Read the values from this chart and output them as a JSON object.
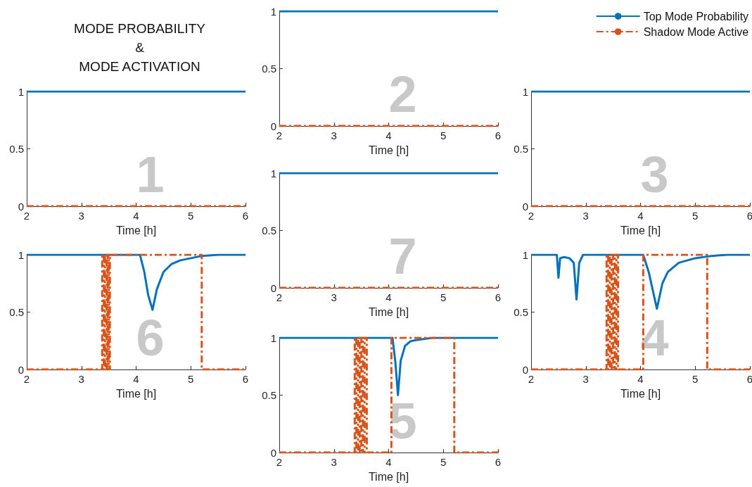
{
  "chart_data": [
    {
      "type": "line",
      "title": "MODE PROBABILITY\n&\nMODE ACTIVATION",
      "xlabel": "Time [h]",
      "annotations": [
        "1"
      ],
      "xlim": [
        2,
        6
      ],
      "xticks": [
        2,
        3,
        4,
        5,
        6
      ],
      "ylim": [
        0,
        1
      ],
      "yticks": [
        0,
        0.5,
        1
      ],
      "grid": false,
      "legend": false,
      "series": [
        {
          "color": "#0072bd",
          "line_style": "solid",
          "x": [
            2,
            6
          ],
          "values": [
            1,
            1
          ]
        },
        {
          "color": "#d95319",
          "line_style": "dashed",
          "x": [
            2,
            6
          ],
          "values": [
            0,
            0
          ]
        }
      ]
    },
    {
      "type": "line",
      "xlabel": "Time [h]",
      "annotations": [
        "2"
      ],
      "xlim": [
        2,
        6
      ],
      "xticks": [
        2,
        3,
        4,
        5,
        6
      ],
      "ylim": [
        0,
        1
      ],
      "yticks": [
        0,
        0.5,
        1
      ],
      "grid": false,
      "legend": false,
      "series": [
        {
          "color": "#0072bd",
          "line_style": "solid",
          "x": [
            2,
            6
          ],
          "values": [
            1,
            1
          ]
        },
        {
          "color": "#d95319",
          "line_style": "dashed",
          "x": [
            2,
            6
          ],
          "values": [
            0,
            0
          ]
        }
      ]
    },
    {
      "type": "line",
      "xlabel": "Time [h]",
      "annotations": [
        "3"
      ],
      "xlim": [
        2,
        6
      ],
      "xticks": [
        2,
        3,
        4,
        5,
        6
      ],
      "ylim": [
        0,
        1
      ],
      "yticks": [
        0,
        0.5,
        1
      ],
      "grid": false,
      "legend": "top right",
      "series": [
        {
          "name": "Top Mode Probability",
          "color": "#0072bd",
          "line_style": "solid",
          "x": [
            2,
            6
          ],
          "values": [
            1,
            1
          ]
        },
        {
          "name": "Shadow Mode Active",
          "color": "#d95319",
          "line_style": "dashed",
          "x": [
            2,
            6
          ],
          "values": [
            0,
            0
          ]
        }
      ]
    },
    {
      "type": "line",
      "xlabel": "Time [h]",
      "annotations": [
        "7"
      ],
      "xlim": [
        2,
        6
      ],
      "xticks": [
        2,
        3,
        4,
        5,
        6
      ],
      "ylim": [
        0,
        1
      ],
      "yticks": [
        0,
        0.5,
        1
      ],
      "grid": false,
      "legend": false,
      "series": [
        {
          "color": "#0072bd",
          "line_style": "solid",
          "x": [
            2,
            6
          ],
          "values": [
            1,
            1
          ]
        },
        {
          "color": "#d95319",
          "line_style": "dashed",
          "x": [
            2,
            6
          ],
          "values": [
            0,
            0
          ]
        }
      ]
    },
    {
      "type": "line",
      "xlabel": "Time [h]",
      "annotations": [
        "6"
      ],
      "xlim": [
        2,
        6
      ],
      "xticks": [
        2,
        3,
        4,
        5,
        6
      ],
      "ylim": [
        0,
        1
      ],
      "yticks": [
        0,
        0.5,
        1
      ],
      "grid": false,
      "legend": false,
      "series": [
        {
          "color": "#0072bd",
          "line_style": "solid",
          "x": [
            2,
            4.07,
            4.15,
            4.22,
            4.3,
            4.38,
            4.5,
            4.65,
            4.8,
            5,
            5.2,
            5.5,
            6
          ],
          "values": [
            1,
            1,
            0.85,
            0.65,
            0.52,
            0.7,
            0.85,
            0.92,
            0.95,
            0.97,
            0.99,
            1,
            1
          ]
        },
        {
          "color": "#d95319",
          "line_style": "dashed",
          "x": [
            2,
            3.38,
            3.38,
            3.41,
            3.41,
            3.43,
            3.43,
            3.46,
            3.46,
            3.48,
            3.48,
            3.5,
            3.5,
            3.52,
            3.52,
            4.05,
            4.05,
            5.2,
            5.2,
            6
          ],
          "values": [
            0,
            0,
            1,
            1,
            0,
            0,
            1,
            1,
            0,
            0,
            1,
            1,
            0,
            0,
            1,
            1,
            1,
            1,
            0,
            0
          ]
        }
      ]
    },
    {
      "type": "line",
      "xlabel": "Time [h]",
      "annotations": [
        "4"
      ],
      "xlim": [
        2,
        6
      ],
      "xticks": [
        2,
        3,
        4,
        5,
        6
      ],
      "ylim": [
        0,
        1
      ],
      "yticks": [
        0,
        0.5,
        1
      ],
      "grid": false,
      "legend": false,
      "series": [
        {
          "color": "#0072bd",
          "line_style": "solid",
          "x": [
            2,
            2.47,
            2.5,
            2.53,
            2.6,
            2.7,
            2.78,
            2.83,
            2.88,
            2.95,
            4.05,
            4.15,
            4.22,
            4.3,
            4.4,
            4.5,
            4.7,
            5,
            5.3,
            5.6,
            6
          ],
          "values": [
            1,
            1,
            0.8,
            0.97,
            0.98,
            0.97,
            0.93,
            0.61,
            0.93,
            1,
            1,
            0.85,
            0.7,
            0.53,
            0.75,
            0.85,
            0.93,
            0.97,
            0.99,
            1,
            1
          ]
        },
        {
          "color": "#d95319",
          "line_style": "dashed",
          "x": [
            2,
            3.38,
            3.38,
            3.41,
            3.41,
            3.44,
            3.44,
            3.47,
            3.47,
            3.5,
            3.5,
            3.53,
            3.53,
            3.56,
            3.56,
            3.59,
            3.59,
            3.62,
            3.62,
            4.05,
            4.05,
            5.22,
            5.22,
            6
          ],
          "values": [
            0,
            0,
            1,
            1,
            0,
            0,
            1,
            1,
            0,
            0,
            1,
            1,
            0,
            0,
            1,
            1,
            0,
            0,
            0,
            0,
            1,
            1,
            0,
            0
          ]
        }
      ]
    },
    {
      "type": "line",
      "xlabel": "Time [h]",
      "annotations": [
        "5"
      ],
      "xlim": [
        2,
        6
      ],
      "xticks": [
        2,
        3,
        4,
        5,
        6
      ],
      "ylim": [
        0,
        1
      ],
      "yticks": [
        0,
        0.5,
        1
      ],
      "grid": false,
      "legend": false,
      "series": [
        {
          "color": "#0072bd",
          "line_style": "solid",
          "x": [
            2,
            4.07,
            4.12,
            4.17,
            4.22,
            4.3,
            4.4,
            4.5,
            4.8,
            6
          ],
          "values": [
            1,
            1,
            0.8,
            0.5,
            0.8,
            0.93,
            0.97,
            0.98,
            1,
            1
          ]
        },
        {
          "color": "#d95319",
          "line_style": "dashed",
          "x": [
            2,
            3.38,
            3.38,
            3.41,
            3.41,
            3.44,
            3.44,
            3.47,
            3.47,
            3.5,
            3.5,
            3.53,
            3.53,
            3.56,
            3.56,
            3.6,
            3.6,
            4.05,
            4.05,
            5.2,
            5.2,
            6
          ],
          "values": [
            0,
            0,
            1,
            1,
            0,
            0,
            1,
            1,
            0,
            0,
            1,
            1,
            0,
            0,
            1,
            1,
            0,
            0,
            1,
            1,
            0,
            0
          ]
        }
      ]
    }
  ]
}
